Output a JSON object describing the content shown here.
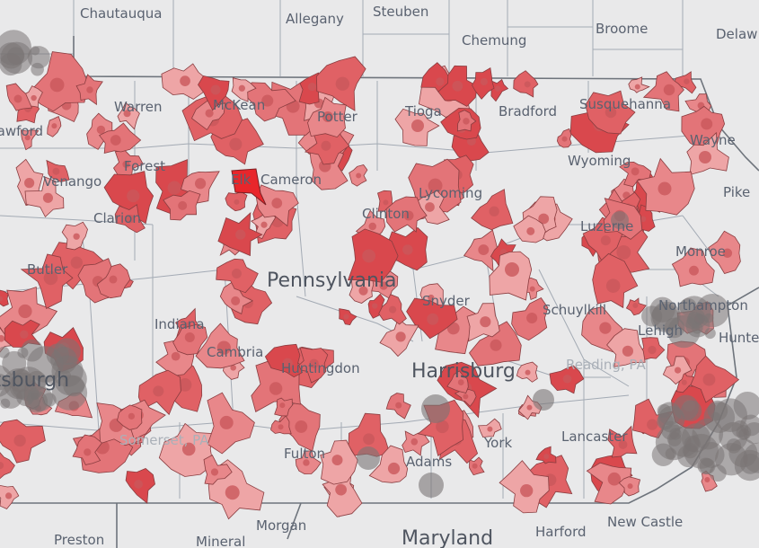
{
  "map": {
    "labels": [
      "Chautauqua",
      "Allegany",
      "Steuben",
      "Chemung",
      "Broome",
      "Delaw",
      "Warren",
      "McKean",
      "Potter",
      "Tioga",
      "Bradford",
      "Susquehanna",
      "Wayne",
      "Crawford",
      "Forest",
      "Elk",
      "Cameron",
      "Wyoming",
      "Pike",
      "Venango",
      "Clarion",
      "Lycoming",
      "Clinton",
      "Luzerne",
      "Monroe",
      "Butler",
      "Pennsylvania",
      "Snyder",
      "Schuylkill",
      "Northampton",
      "Indiana",
      "Lehigh",
      "Hunte",
      "Cambria",
      "Huntingdon",
      "Reading, PA",
      "Harrisburg",
      "Somerset, PA",
      "Fulton",
      "Adams",
      "York",
      "Lancaster",
      "Morgan",
      "Preston",
      "Mineral",
      "Maryland",
      "Harford",
      "New Castle",
      "Pittsburgh"
    ]
  }
}
